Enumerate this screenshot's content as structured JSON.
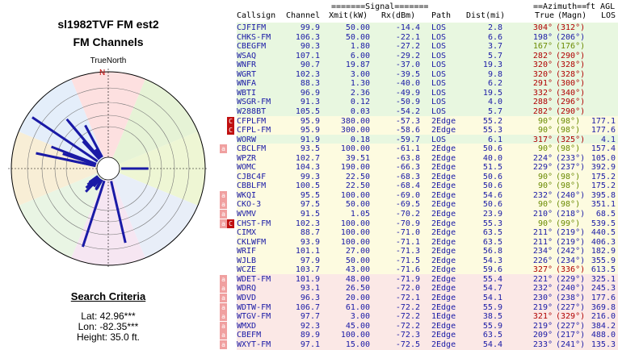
{
  "title_line1": "sl1982TVF FM est2",
  "title_line2": "FM Channels",
  "compass_label": "TrueNorth",
  "north_marker": "N",
  "search": {
    "title": "Search Criteria",
    "lat": "Lat: 42.96***",
    "lon": "Lon: -82.35***",
    "height": "Height: 35.0 ft."
  },
  "header": {
    "signal_group": "=======Signal=======",
    "azimuth_group": "==Azimuth==",
    "ftagl": "ft AGL",
    "cols": [
      "Callsign",
      "Channel",
      "Xmit(kW)",
      "Rx(dBm)",
      "Path",
      "Dist(mi)",
      "True",
      "(Magn)",
      "LOS"
    ]
  },
  "colors": {
    "blue": "#1a1aa6",
    "red": "#b00000",
    "green": "#6a8a00",
    "magenta": "#b000b0",
    "lightgreen": "#e8f7e0",
    "lightyellow": "#fdfbe0",
    "lightpink": "#fbe8e6",
    "badgeC": "#c01010",
    "badgeA": "#f0a0a0"
  },
  "rows": [
    {
      "call": "CJFIFM",
      "ch": "99.9",
      "kw": "50.00",
      "rx": "-14.4",
      "path": "LOS",
      "dist": "2.8",
      "true": "304°",
      "mag": "(312°)",
      "los": "",
      "bg": "g",
      "tc": "r",
      "badge": "",
      "c": false
    },
    {
      "call": "CHKS-FM",
      "ch": "106.3",
      "kw": "50.00",
      "rx": "-22.1",
      "path": "LOS",
      "dist": "6.6",
      "true": "198°",
      "mag": "(206°)",
      "los": "",
      "bg": "g",
      "tc": "b",
      "badge": "",
      "c": false
    },
    {
      "call": "CBEGFM",
      "ch": "90.3",
      "kw": "1.80",
      "rx": "-27.2",
      "path": "LOS",
      "dist": "3.7",
      "true": "167°",
      "mag": "(176°)",
      "los": "",
      "bg": "g",
      "tc": "g",
      "badge": "",
      "c": false
    },
    {
      "call": "WSAQ",
      "ch": "107.1",
      "kw": "6.00",
      "rx": "-29.2",
      "path": "LOS",
      "dist": "5.7",
      "true": "282°",
      "mag": "(290°)",
      "los": "",
      "bg": "g",
      "tc": "r",
      "badge": "",
      "c": false
    },
    {
      "call": "WNFR",
      "ch": "90.7",
      "kw": "19.87",
      "rx": "-37.0",
      "path": "LOS",
      "dist": "19.3",
      "true": "320°",
      "mag": "(328°)",
      "los": "",
      "bg": "g",
      "tc": "r",
      "badge": "",
      "c": false
    },
    {
      "call": "WGRT",
      "ch": "102.3",
      "kw": "3.00",
      "rx": "-39.5",
      "path": "LOS",
      "dist": "9.8",
      "true": "320°",
      "mag": "(328°)",
      "los": "",
      "bg": "g",
      "tc": "r",
      "badge": "",
      "c": false
    },
    {
      "call": "WNFA",
      "ch": "88.3",
      "kw": "1.30",
      "rx": "-40.0",
      "path": "LOS",
      "dist": "6.2",
      "true": "291°",
      "mag": "(300°)",
      "los": "",
      "bg": "g",
      "tc": "r",
      "badge": "",
      "c": false
    },
    {
      "call": "WBTI",
      "ch": "96.9",
      "kw": "2.36",
      "rx": "-49.9",
      "path": "LOS",
      "dist": "19.5",
      "true": "332°",
      "mag": "(340°)",
      "los": "",
      "bg": "g",
      "tc": "r",
      "badge": "",
      "c": false
    },
    {
      "call": "WSGR-FM",
      "ch": "91.3",
      "kw": "0.12",
      "rx": "-50.9",
      "path": "LOS",
      "dist": "4.0",
      "true": "288°",
      "mag": "(296°)",
      "los": "",
      "bg": "g",
      "tc": "r",
      "badge": "",
      "c": false
    },
    {
      "call": "W288BT",
      "ch": "105.5",
      "kw": "0.03",
      "rx": "-54.2",
      "path": "LOS",
      "dist": "5.7",
      "true": "282°",
      "mag": "(290°)",
      "los": "",
      "bg": "g",
      "tc": "r",
      "badge": "",
      "c": false
    },
    {
      "call": "CFPLFM",
      "ch": "95.9",
      "kw": "380.00",
      "rx": "-57.3",
      "path": "2Edge",
      "dist": "55.2",
      "true": "90°",
      "mag": "(98°)",
      "los": "177.1",
      "bg": "y",
      "tc": "g",
      "badge": "",
      "c": true
    },
    {
      "call": "CFPL-FM",
      "ch": "95.9",
      "kw": "300.00",
      "rx": "-58.6",
      "path": "2Edge",
      "dist": "55.3",
      "true": "90°",
      "mag": "(98°)",
      "los": "177.6",
      "bg": "y",
      "tc": "g",
      "badge": "",
      "c": true
    },
    {
      "call": "WORW",
      "ch": "91.9",
      "kw": "0.18",
      "rx": "-59.7",
      "path": "LOS",
      "dist": "6.1",
      "true": "317°",
      "mag": "(325°)",
      "los": "4.1",
      "bg": "g",
      "tc": "r",
      "badge": "",
      "c": false
    },
    {
      "call": "CBCLFM",
      "ch": "93.5",
      "kw": "100.00",
      "rx": "-61.1",
      "path": "2Edge",
      "dist": "50.6",
      "true": "90°",
      "mag": "(98°)",
      "los": "157.4",
      "bg": "y",
      "tc": "g",
      "badge": "a",
      "c": false
    },
    {
      "call": "WPZR",
      "ch": "102.7",
      "kw": "39.51",
      "rx": "-63.8",
      "path": "2Edge",
      "dist": "40.0",
      "true": "224°",
      "mag": "(233°)",
      "los": "105.0",
      "bg": "y",
      "tc": "b",
      "badge": "",
      "c": false
    },
    {
      "call": "WOMC",
      "ch": "104.3",
      "kw": "190.00",
      "rx": "-66.3",
      "path": "2Edge",
      "dist": "51.5",
      "true": "229°",
      "mag": "(237°)",
      "los": "392.9",
      "bg": "y",
      "tc": "b",
      "badge": "",
      "c": false
    },
    {
      "call": "CJBC4F",
      "ch": "99.3",
      "kw": "22.50",
      "rx": "-68.3",
      "path": "2Edge",
      "dist": "50.6",
      "true": "90°",
      "mag": "(98°)",
      "los": "175.2",
      "bg": "y",
      "tc": "g",
      "badge": "",
      "c": false
    },
    {
      "call": "CBBLFM",
      "ch": "100.5",
      "kw": "22.50",
      "rx": "-68.4",
      "path": "2Edge",
      "dist": "50.6",
      "true": "90°",
      "mag": "(98°)",
      "los": "175.2",
      "bg": "y",
      "tc": "g",
      "badge": "",
      "c": false
    },
    {
      "call": "WKQI",
      "ch": "95.5",
      "kw": "100.00",
      "rx": "-69.0",
      "path": "2Edge",
      "dist": "54.6",
      "true": "232°",
      "mag": "(240°)",
      "los": "395.8",
      "bg": "y",
      "tc": "b",
      "badge": "a",
      "c": false
    },
    {
      "call": "CKO-3",
      "ch": "97.5",
      "kw": "50.00",
      "rx": "-69.5",
      "path": "2Edge",
      "dist": "50.6",
      "true": "90°",
      "mag": "(98°)",
      "los": "351.1",
      "bg": "y",
      "tc": "g",
      "badge": "a",
      "c": false
    },
    {
      "call": "WVMV",
      "ch": "91.5",
      "kw": "1.05",
      "rx": "-70.2",
      "path": "2Edge",
      "dist": "23.9",
      "true": "210°",
      "mag": "(218°)",
      "los": "68.5",
      "bg": "y",
      "tc": "b",
      "badge": "a",
      "c": false
    },
    {
      "call": "CHST-FM",
      "ch": "102.3",
      "kw": "100.00",
      "rx": "-70.9",
      "path": "2Edge",
      "dist": "55.3",
      "true": "90°",
      "mag": "(99°)",
      "los": "539.5",
      "bg": "y",
      "tc": "g",
      "badge": "a",
      "c": true
    },
    {
      "call": "CIMX",
      "ch": "88.7",
      "kw": "100.00",
      "rx": "-71.0",
      "path": "2Edge",
      "dist": "63.5",
      "true": "211°",
      "mag": "(219°)",
      "los": "440.5",
      "bg": "y",
      "tc": "b",
      "badge": "",
      "c": false
    },
    {
      "call": "CKLWFM",
      "ch": "93.9",
      "kw": "100.00",
      "rx": "-71.1",
      "path": "2Edge",
      "dist": "63.5",
      "true": "211°",
      "mag": "(219°)",
      "los": "406.3",
      "bg": "y",
      "tc": "b",
      "badge": "",
      "c": false
    },
    {
      "call": "WRIF",
      "ch": "101.1",
      "kw": "27.00",
      "rx": "-71.3",
      "path": "2Edge",
      "dist": "56.8",
      "true": "234°",
      "mag": "(242°)",
      "los": "182.9",
      "bg": "y",
      "tc": "b",
      "badge": "",
      "c": false
    },
    {
      "call": "WJLB",
      "ch": "97.9",
      "kw": "50.00",
      "rx": "-71.5",
      "path": "2Edge",
      "dist": "54.3",
      "true": "226°",
      "mag": "(234°)",
      "los": "355.9",
      "bg": "y",
      "tc": "b",
      "badge": "",
      "c": false
    },
    {
      "call": "WCZE",
      "ch": "103.7",
      "kw": "43.00",
      "rx": "-71.6",
      "path": "2Edge",
      "dist": "59.6",
      "true": "327°",
      "mag": "(336°)",
      "los": "613.5",
      "bg": "y",
      "tc": "r",
      "badge": "",
      "c": false
    },
    {
      "call": "WDET-FM",
      "ch": "101.9",
      "kw": "48.00",
      "rx": "-71.9",
      "path": "2Edge",
      "dist": "55.4",
      "true": "221°",
      "mag": "(229°)",
      "los": "325.1",
      "bg": "p",
      "tc": "b",
      "badge": "a",
      "c": false
    },
    {
      "call": "WDRQ",
      "ch": "93.1",
      "kw": "26.50",
      "rx": "-72.0",
      "path": "2Edge",
      "dist": "54.7",
      "true": "232°",
      "mag": "(240°)",
      "los": "245.3",
      "bg": "p",
      "tc": "b",
      "badge": "a",
      "c": false
    },
    {
      "call": "WDVD",
      "ch": "96.3",
      "kw": "20.00",
      "rx": "-72.1",
      "path": "2Edge",
      "dist": "54.1",
      "true": "230°",
      "mag": "(238°)",
      "los": "177.6",
      "bg": "p",
      "tc": "b",
      "badge": "a",
      "c": false
    },
    {
      "call": "WDTW-FM",
      "ch": "106.7",
      "kw": "61.00",
      "rx": "-72.2",
      "path": "2Edge",
      "dist": "55.9",
      "true": "219°",
      "mag": "(227°)",
      "los": "369.8",
      "bg": "p",
      "tc": "b",
      "badge": "a",
      "c": false
    },
    {
      "call": "WTGV-FM",
      "ch": "97.7",
      "kw": "3.00",
      "rx": "-72.2",
      "path": "1Edge",
      "dist": "38.5",
      "true": "321°",
      "mag": "(329°)",
      "los": "216.0",
      "bg": "p",
      "tc": "r",
      "badge": "a",
      "c": false
    },
    {
      "call": "WMXD",
      "ch": "92.3",
      "kw": "45.00",
      "rx": "-72.2",
      "path": "2Edge",
      "dist": "55.9",
      "true": "219°",
      "mag": "(227°)",
      "los": "384.2",
      "bg": "p",
      "tc": "b",
      "badge": "a",
      "c": false
    },
    {
      "call": "CBEFM",
      "ch": "89.9",
      "kw": "100.00",
      "rx": "-72.3",
      "path": "2Edge",
      "dist": "63.5",
      "true": "209°",
      "mag": "(217°)",
      "los": "488.0",
      "bg": "p",
      "tc": "b",
      "badge": "a",
      "c": false
    },
    {
      "call": "WXYT-FM",
      "ch": "97.1",
      "kw": "15.00",
      "rx": "-72.5",
      "path": "2Edge",
      "dist": "54.4",
      "true": "233°",
      "mag": "(241°)",
      "los": "135.3",
      "bg": "p",
      "tc": "b",
      "badge": "a",
      "c": false
    }
  ]
}
